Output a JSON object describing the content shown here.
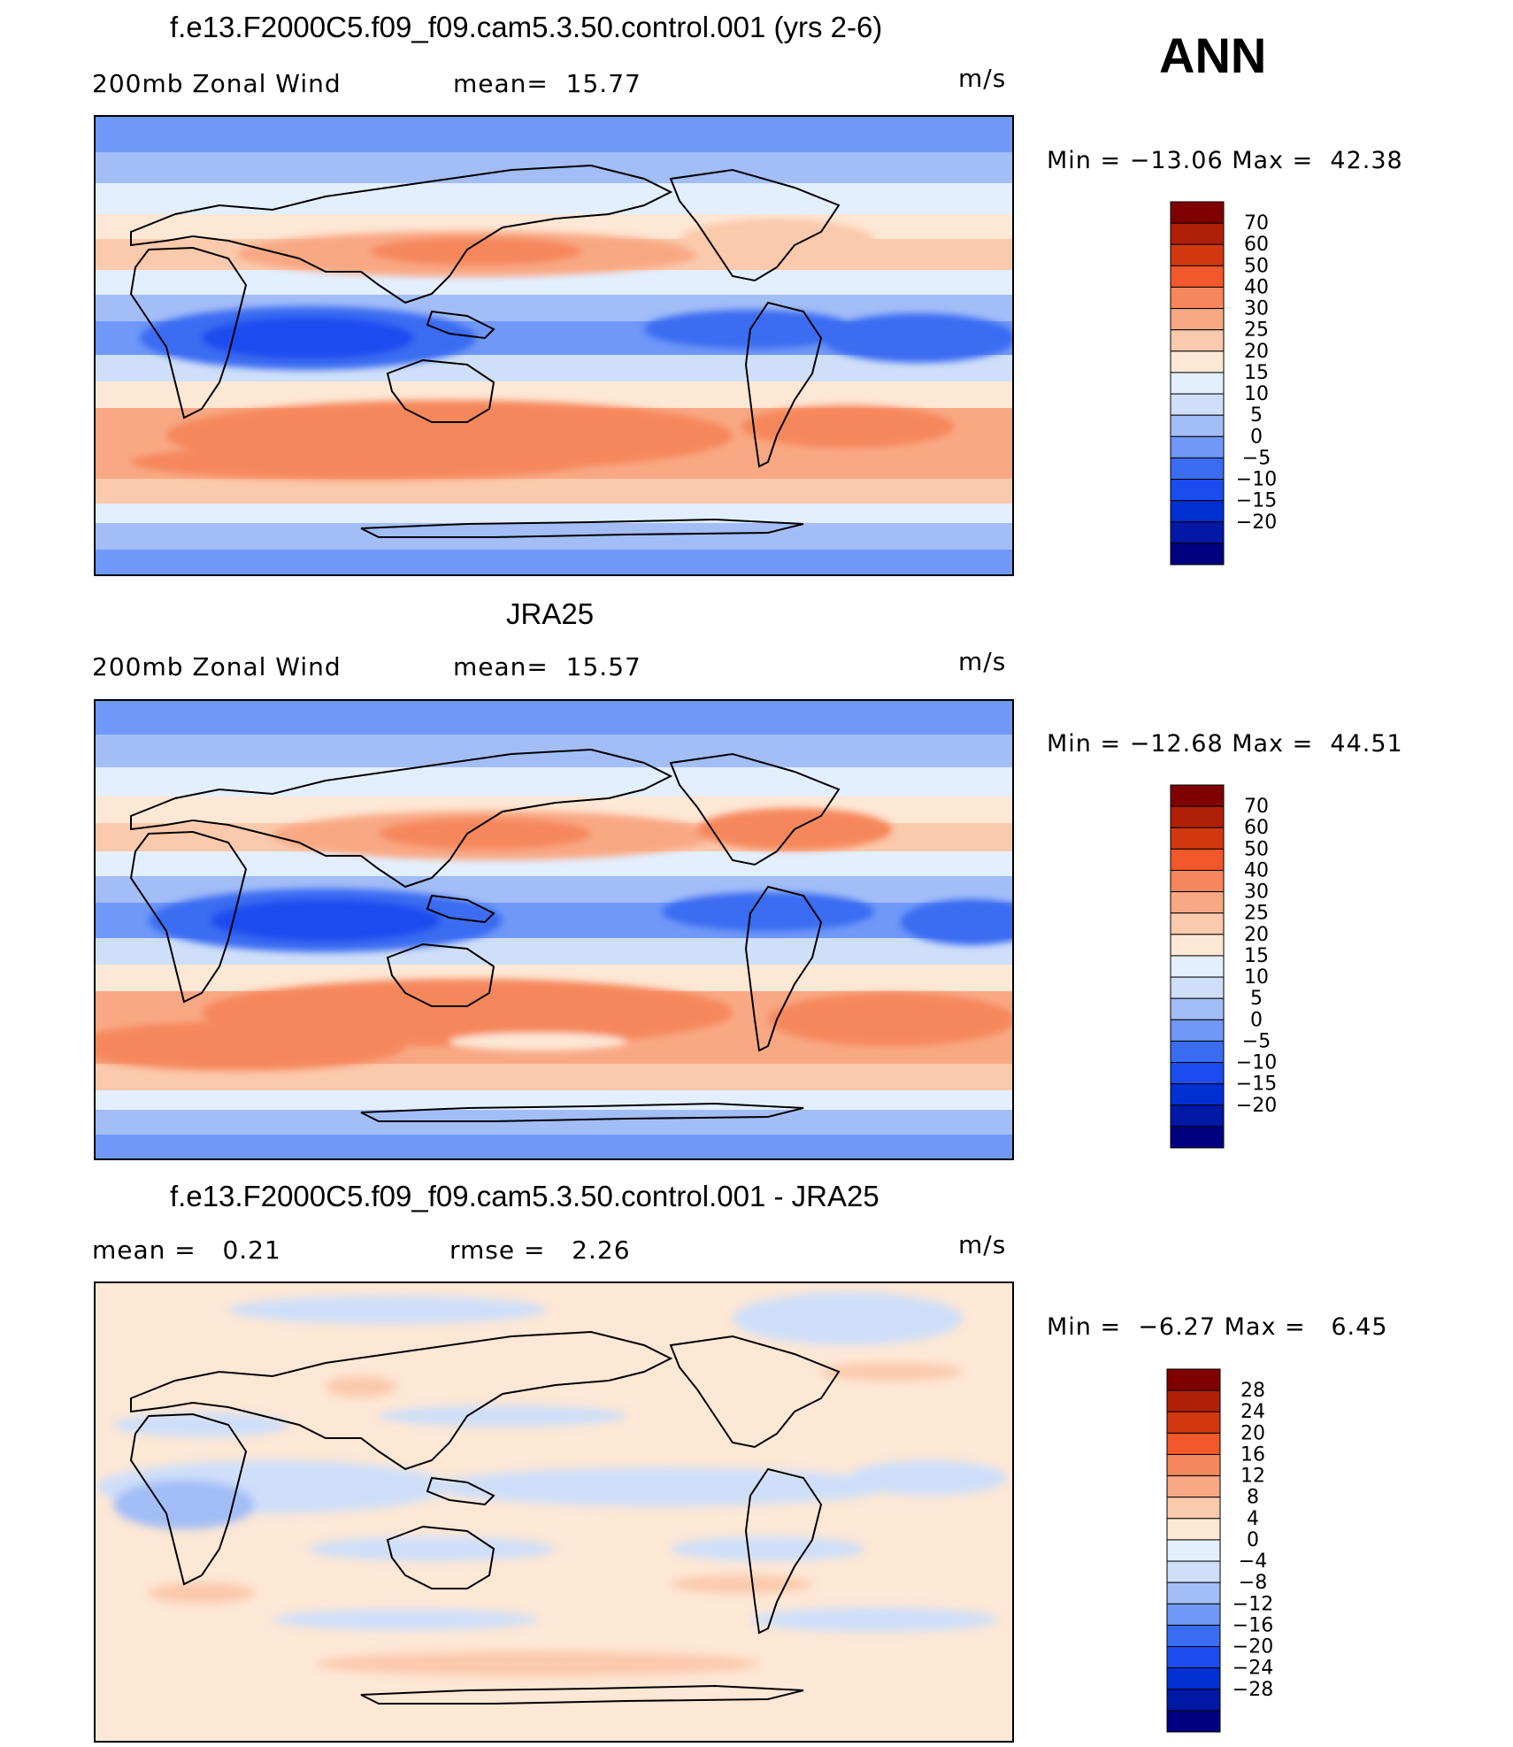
{
  "season": "ANN",
  "colors": {
    "full": [
      "#000080",
      "#0018a5",
      "#0030d2",
      "#1a4cf0",
      "#3a6cf2",
      "#6f98f8",
      "#a3bdf7",
      "#cfdff9",
      "#e3efff",
      "#fde7d5",
      "#fbc9ac",
      "#f9a884",
      "#f6875c",
      "#f1582b",
      "#d2380f",
      "#b02008",
      "#800000"
    ],
    "diff": [
      "#000080",
      "#0018a5",
      "#0030d2",
      "#1a4cf0",
      "#3a6cf2",
      "#6f98f8",
      "#a3bdf7",
      "#cfdff9",
      "#e3efff",
      "#fde7d5",
      "#fbc9ac",
      "#f9a884",
      "#f6875c",
      "#f1582b",
      "#d2380f",
      "#b02008",
      "#800000"
    ]
  },
  "panels": [
    {
      "title": "f.e13.F2000C5.f09_f09.cam5.3.50.control.001 (yrs 2-6)",
      "left_label": "200mb Zonal Wind",
      "mid_label": "mean=  15.77",
      "units": "m/s",
      "minmax": "Min = −13.06 Max =  42.38",
      "levels": [
        "70",
        "60",
        "50",
        "40",
        "30",
        "25",
        "20",
        "15",
        "10",
        "5",
        "0",
        "−5",
        "−10",
        "−15",
        "−20"
      ]
    },
    {
      "title": "JRA25",
      "left_label": "200mb Zonal Wind",
      "mid_label": "mean=  15.57",
      "units": "m/s",
      "minmax": "Min = −12.68 Max =  44.51",
      "levels": [
        "70",
        "60",
        "50",
        "40",
        "30",
        "25",
        "20",
        "15",
        "10",
        "5",
        "0",
        "−5",
        "−10",
        "−15",
        "−20"
      ]
    },
    {
      "title": "f.e13.F2000C5.f09_f09.cam5.3.50.control.001 - JRA25",
      "left_label": "mean =   0.21",
      "mid_label": "rmse =   2.26",
      "units": "m/s",
      "minmax": "Min =  −6.27 Max =   6.45",
      "levels": [
        "28",
        "24",
        "20",
        "16",
        "12",
        "8",
        "4",
        "0",
        "−4",
        "−8",
        "−12",
        "−16",
        "−20",
        "−24",
        "−28"
      ]
    }
  ]
}
